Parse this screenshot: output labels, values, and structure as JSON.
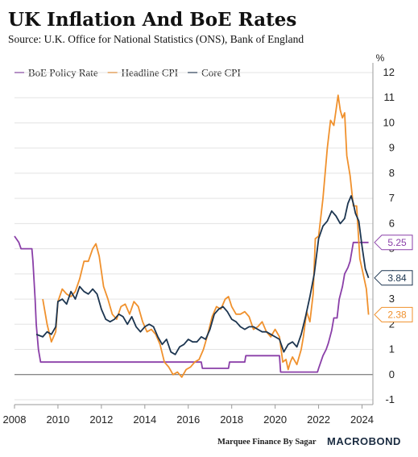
{
  "title": "UK Inflation And BoE Rates",
  "subtitle": "Source: U.K. Office for National Statistics (ONS), Bank of England",
  "footer": {
    "credit": "Marquee Finance By Sagar",
    "brand": "MACROBOND"
  },
  "chart_data": {
    "type": "line",
    "y_unit": "%",
    "ylim": [
      -1,
      12
    ],
    "xlim": [
      2008,
      2024.5
    ],
    "y_ticks": [
      -1,
      0,
      1,
      2,
      3,
      4,
      5,
      6,
      7,
      8,
      9,
      10,
      11,
      12
    ],
    "x_ticks": [
      2008,
      2010,
      2012,
      2014,
      2016,
      2018,
      2020,
      2022,
      2024
    ],
    "grid": "horizontal",
    "legend": "top-left",
    "series": [
      {
        "name": "BoE Policy Rate",
        "color": "#8a3fa8",
        "x": [
          2008.0,
          2008.2,
          2008.3,
          2008.8,
          2008.85,
          2008.95,
          2009.0,
          2009.1,
          2009.2,
          2016.6,
          2016.65,
          2017.85,
          2017.9,
          2018.6,
          2018.65,
          2020.2,
          2020.25,
          2021.95,
          2022.0,
          2022.1,
          2022.2,
          2022.35,
          2022.45,
          2022.6,
          2022.7,
          2022.85,
          2022.95,
          2023.1,
          2023.2,
          2023.35,
          2023.45,
          2023.6,
          2024.3
        ],
        "y": [
          5.5,
          5.25,
          5.0,
          5.0,
          4.5,
          3.0,
          2.0,
          1.0,
          0.5,
          0.5,
          0.25,
          0.25,
          0.5,
          0.5,
          0.75,
          0.75,
          0.1,
          0.1,
          0.25,
          0.5,
          0.75,
          1.0,
          1.25,
          1.75,
          2.25,
          2.25,
          3.0,
          3.5,
          4.0,
          4.25,
          4.5,
          5.25,
          5.25
        ]
      },
      {
        "name": "Headline CPI",
        "color": "#f0912d",
        "x": [
          2009.3,
          2009.5,
          2009.7,
          2009.9,
          2010.0,
          2010.2,
          2010.4,
          2010.6,
          2010.8,
          2011.0,
          2011.2,
          2011.4,
          2011.6,
          2011.75,
          2011.9,
          2012.1,
          2012.3,
          2012.5,
          2012.7,
          2012.9,
          2013.1,
          2013.3,
          2013.5,
          2013.7,
          2013.9,
          2014.1,
          2014.3,
          2014.5,
          2014.7,
          2014.9,
          2015.1,
          2015.3,
          2015.5,
          2015.7,
          2015.9,
          2016.1,
          2016.3,
          2016.5,
          2016.7,
          2016.9,
          2017.1,
          2017.3,
          2017.5,
          2017.7,
          2017.85,
          2018.0,
          2018.2,
          2018.4,
          2018.6,
          2018.8,
          2019.0,
          2019.2,
          2019.4,
          2019.6,
          2019.8,
          2020.0,
          2020.2,
          2020.35,
          2020.5,
          2020.6,
          2020.7,
          2020.8,
          2021.0,
          2021.2,
          2021.3,
          2021.45,
          2021.6,
          2021.75,
          2021.85,
          2022.0,
          2022.2,
          2022.4,
          2022.55,
          2022.7,
          2022.8,
          2022.9,
          2023.0,
          2023.1,
          2023.2,
          2023.3,
          2023.45,
          2023.6,
          2023.75,
          2023.9,
          2024.05,
          2024.2,
          2024.3
        ],
        "y": [
          3.0,
          2.0,
          1.3,
          1.7,
          2.9,
          3.4,
          3.2,
          3.1,
          3.3,
          3.8,
          4.5,
          4.5,
          5.0,
          5.2,
          4.7,
          3.5,
          3.0,
          2.4,
          2.2,
          2.7,
          2.8,
          2.4,
          2.9,
          2.7,
          2.1,
          1.7,
          1.8,
          1.6,
          1.2,
          0.5,
          0.3,
          0.0,
          0.1,
          -0.1,
          0.2,
          0.3,
          0.5,
          0.6,
          1.0,
          1.6,
          2.3,
          2.7,
          2.6,
          3.0,
          3.1,
          2.7,
          2.4,
          2.4,
          2.5,
          2.3,
          1.8,
          1.9,
          2.1,
          1.7,
          1.5,
          1.8,
          1.5,
          0.5,
          0.6,
          0.2,
          0.5,
          0.7,
          0.4,
          1.0,
          1.5,
          2.5,
          2.1,
          3.2,
          5.4,
          5.5,
          7.0,
          9.0,
          10.1,
          9.9,
          10.5,
          11.1,
          10.5,
          10.2,
          10.4,
          8.7,
          7.9,
          6.7,
          6.7,
          4.6,
          4.0,
          3.4,
          2.38
        ]
      },
      {
        "name": "Core CPI",
        "color": "#1c3550",
        "x": [
          2009.0,
          2009.3,
          2009.5,
          2009.7,
          2009.9,
          2010.0,
          2010.2,
          2010.4,
          2010.6,
          2010.8,
          2011.0,
          2011.2,
          2011.4,
          2011.6,
          2011.8,
          2012.0,
          2012.2,
          2012.4,
          2012.6,
          2012.8,
          2013.0,
          2013.2,
          2013.4,
          2013.6,
          2013.8,
          2014.0,
          2014.2,
          2014.4,
          2014.6,
          2014.8,
          2015.0,
          2015.2,
          2015.4,
          2015.6,
          2015.8,
          2016.0,
          2016.2,
          2016.4,
          2016.6,
          2016.8,
          2017.0,
          2017.2,
          2017.4,
          2017.6,
          2017.8,
          2018.0,
          2018.2,
          2018.4,
          2018.6,
          2018.8,
          2019.0,
          2019.2,
          2019.4,
          2019.6,
          2019.8,
          2020.0,
          2020.2,
          2020.4,
          2020.6,
          2020.8,
          2021.0,
          2021.2,
          2021.4,
          2021.6,
          2021.8,
          2022.0,
          2022.2,
          2022.4,
          2022.6,
          2022.8,
          2023.0,
          2023.2,
          2023.35,
          2023.5,
          2023.6,
          2023.7,
          2023.85,
          2024.0,
          2024.15,
          2024.3
        ],
        "y": [
          1.6,
          1.5,
          1.7,
          1.6,
          1.9,
          2.9,
          3.0,
          2.8,
          3.3,
          3.0,
          3.5,
          3.3,
          3.2,
          3.4,
          3.2,
          2.6,
          2.2,
          2.1,
          2.2,
          2.4,
          2.3,
          2.0,
          2.3,
          1.9,
          1.7,
          1.9,
          2.0,
          1.9,
          1.5,
          1.2,
          1.4,
          0.9,
          0.8,
          1.1,
          1.2,
          1.4,
          1.3,
          1.3,
          1.5,
          1.4,
          1.8,
          2.4,
          2.6,
          2.7,
          2.5,
          2.2,
          2.1,
          1.9,
          1.8,
          1.9,
          1.9,
          1.8,
          1.7,
          1.7,
          1.6,
          1.5,
          1.4,
          0.9,
          1.2,
          1.3,
          1.1,
          1.6,
          2.3,
          3.1,
          4.0,
          5.4,
          5.9,
          6.1,
          6.5,
          6.3,
          6.0,
          6.2,
          6.8,
          7.1,
          6.8,
          6.4,
          6.1,
          5.1,
          4.2,
          3.84
        ]
      }
    ],
    "latest_labels": [
      {
        "series": "BoE Policy Rate",
        "text": "5.25",
        "value": 5.25
      },
      {
        "series": "Core CPI",
        "text": "3.84",
        "value": 3.84
      },
      {
        "series": "Headline CPI",
        "text": "2.38",
        "value": 2.38
      }
    ]
  }
}
